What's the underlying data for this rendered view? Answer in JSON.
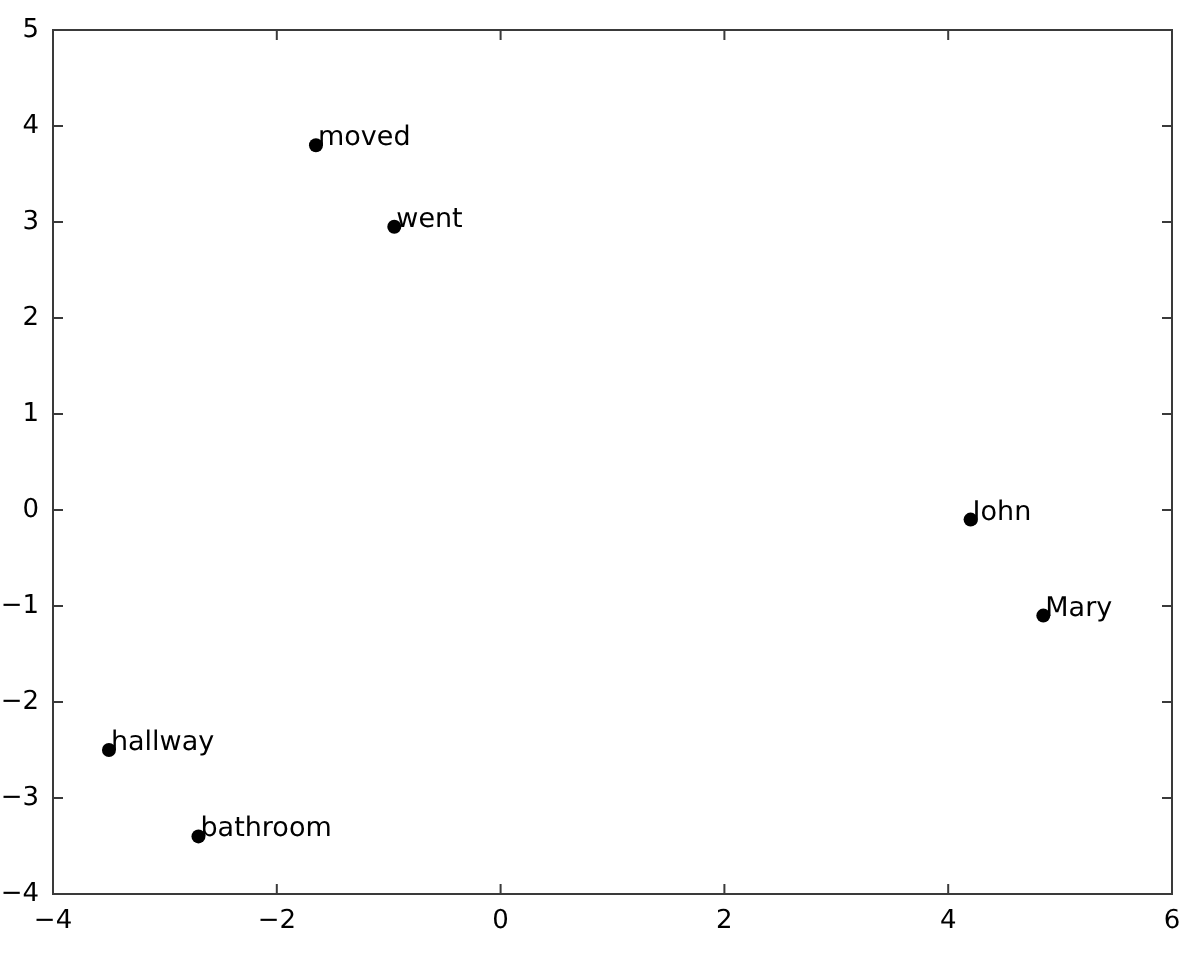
{
  "chart_data": {
    "type": "scatter",
    "series": [
      {
        "name": "moved",
        "color": "#000000",
        "x": [
          -1.65
        ],
        "values": [
          3.8
        ]
      },
      {
        "name": "went",
        "color": "#000000",
        "x": [
          -0.95
        ],
        "values": [
          2.95
        ]
      },
      {
        "name": "John",
        "color": "#000000",
        "x": [
          4.2
        ],
        "values": [
          -0.1
        ]
      },
      {
        "name": "Mary",
        "color": "#000000",
        "x": [
          4.85
        ],
        "values": [
          -1.1
        ]
      },
      {
        "name": "hallway",
        "color": "#000000",
        "x": [
          -3.5
        ],
        "values": [
          -2.5
        ]
      },
      {
        "name": "bathroom",
        "color": "#000000",
        "x": [
          -2.7
        ],
        "values": [
          -3.4
        ]
      }
    ],
    "xlim": [
      -4,
      6
    ],
    "xticks": [
      -4,
      -2,
      0,
      2,
      4,
      6
    ],
    "ylim": [
      -4,
      5
    ],
    "yticks": [
      -4,
      -3,
      -2,
      -1,
      0,
      1,
      2,
      3,
      4,
      5
    ],
    "marker": "circle",
    "grid": false,
    "legend": false
  }
}
